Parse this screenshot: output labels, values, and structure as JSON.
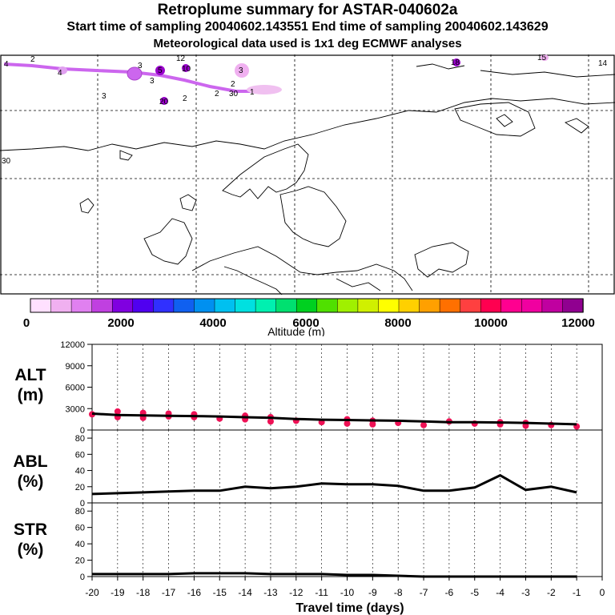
{
  "header": {
    "title": "Retroplume summary for ASTAR-040602a",
    "sampling": "Start time of sampling 20040602.143551     End time of sampling 20040602.143629",
    "met": "Meteorological data used is 1x1 deg ECMWF analyses"
  },
  "map": {
    "day_markers": [
      "4",
      "2",
      "4",
      "3",
      "5",
      "3",
      "12",
      "10",
      "3",
      "2",
      "3",
      "2",
      "1",
      "18",
      "15",
      "14",
      "30",
      "20",
      "2",
      "30"
    ]
  },
  "colorbar": {
    "label": "Altitude (m)",
    "ticks": [
      "0",
      "2000",
      "4000",
      "6000",
      "8000",
      "10000",
      "12000"
    ],
    "colors": [
      "#ffe0ff",
      "#f0b0f0",
      "#e080f0",
      "#c040e0",
      "#8000e0",
      "#5000f0",
      "#3030ff",
      "#1060f0",
      "#0090f0",
      "#00c0f0",
      "#00e0e0",
      "#00f0b0",
      "#00e070",
      "#00d020",
      "#50e000",
      "#a0f000",
      "#d0f000",
      "#ffff00",
      "#ffd000",
      "#ffa000",
      "#ff7000",
      "#ff4040",
      "#ff0050",
      "#ff0090",
      "#f000a0",
      "#c000a0",
      "#900090"
    ]
  },
  "chart_data": [
    {
      "type": "line",
      "title": "ALT (m)",
      "ylabel_top": "ALT",
      "ylabel_bottom": "(m)",
      "ylim": [
        0,
        12000
      ],
      "yticks": [
        "12000",
        "9000",
        "6000",
        "3000",
        "0"
      ],
      "xlim": [
        -20,
        0
      ],
      "x": [
        -20,
        -19,
        -18,
        -17,
        -16,
        -15,
        -14,
        -13,
        -12,
        -11,
        -10,
        -9,
        -8,
        -7,
        -6,
        -5,
        -4,
        -3,
        -2,
        -1
      ],
      "values": [
        2300,
        2100,
        2050,
        2000,
        1950,
        1900,
        1800,
        1700,
        1550,
        1450,
        1400,
        1350,
        1300,
        1200,
        1100,
        1100,
        1050,
        1000,
        900,
        800
      ],
      "scatter_x": [
        -20,
        -19,
        -19,
        -18,
        -18,
        -17,
        -17,
        -16,
        -16,
        -15,
        -14,
        -14,
        -13,
        -13,
        -12,
        -11,
        -10,
        -10,
        -9,
        -9,
        -8,
        -7,
        -6,
        -5,
        -4,
        -4,
        -3,
        -3,
        -2,
        -1
      ],
      "scatter_y": [
        2200,
        1800,
        2600,
        1700,
        2400,
        1900,
        2300,
        1800,
        2200,
        1600,
        1500,
        2000,
        1200,
        1800,
        1300,
        1100,
        900,
        1500,
        800,
        1300,
        1000,
        700,
        1200,
        900,
        1100,
        800,
        1000,
        600,
        700,
        500
      ]
    },
    {
      "type": "line",
      "title": "ABL (%)",
      "ylabel_top": "ABL",
      "ylabel_bottom": "(%)",
      "ylim": [
        0,
        90
      ],
      "yticks": [
        "80",
        "60",
        "40",
        "20",
        "0"
      ],
      "xlim": [
        -20,
        0
      ],
      "x": [
        -20,
        -19,
        -18,
        -17,
        -16,
        -15,
        -14,
        -13,
        -12,
        -11,
        -10,
        -9,
        -8,
        -7,
        -6,
        -5,
        -4,
        -3,
        -2,
        -1
      ],
      "values": [
        11,
        12,
        13,
        14,
        15,
        15,
        20,
        18,
        20,
        24,
        23,
        23,
        21,
        15,
        15,
        19,
        34,
        16,
        20,
        13
      ]
    },
    {
      "type": "line",
      "title": "STR (%)",
      "ylabel_top": "STR",
      "ylabel_bottom": "(%)",
      "ylim": [
        0,
        90
      ],
      "yticks": [
        "80",
        "60",
        "40",
        "20",
        "0"
      ],
      "xlim": [
        -20,
        0
      ],
      "x": [
        -20,
        -19,
        -18,
        -17,
        -16,
        -15,
        -14,
        -13,
        -12,
        -11,
        -10,
        -9,
        -8,
        -7,
        -6,
        -5,
        -4,
        -3,
        -2,
        -1
      ],
      "values": [
        3,
        3,
        3,
        3,
        4,
        4,
        4,
        3,
        3,
        3,
        2,
        2,
        1,
        0,
        0,
        0,
        0,
        0,
        0,
        0
      ]
    }
  ],
  "xaxis": {
    "label": "Travel time (days)",
    "ticks": [
      "-20",
      "-19",
      "-18",
      "-17",
      "-16",
      "-15",
      "-14",
      "-13",
      "-12",
      "-11",
      "-10",
      "-9",
      "-8",
      "-7",
      "-6",
      "-5",
      "-4",
      "-3",
      "-2",
      "-1",
      "0"
    ]
  }
}
